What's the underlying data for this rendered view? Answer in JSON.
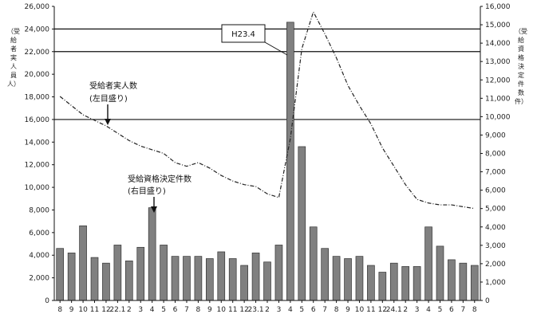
{
  "chart_data": {
    "type": "bar",
    "title": "",
    "ylabel_left": [
      "（受",
      "給",
      "者",
      "実",
      "人",
      "員",
      "人）"
    ],
    "ylabel_right": [
      "（受",
      "給",
      "資",
      "格",
      "決",
      "定",
      "件",
      "数",
      "件）"
    ],
    "categories": [
      "8",
      "9",
      "10",
      "11",
      "12",
      "22.1",
      "2",
      "3",
      "4",
      "5",
      "6",
      "7",
      "8",
      "9",
      "10",
      "11",
      "12",
      "23.1",
      "2",
      "3",
      "4",
      "5",
      "6",
      "7",
      "8",
      "9",
      "10",
      "11",
      "12",
      "24.1",
      "2",
      "3",
      "4",
      "5",
      "6",
      "7",
      "8"
    ],
    "left_axis": {
      "ylim": [
        0,
        26000
      ],
      "ticks": [
        "0",
        "2,000",
        "4,000",
        "6,000",
        "8,000",
        "10,000",
        "12,000",
        "14,000",
        "16,000",
        "18,000",
        "20,000",
        "22,000",
        "24,000",
        "26,000"
      ]
    },
    "right_axis": {
      "ylim": [
        0,
        16000
      ],
      "ticks": [
        "0",
        "1,000",
        "2,000",
        "3,000",
        "4,000",
        "5,000",
        "6,000",
        "7,000",
        "8,000",
        "9,000",
        "10,000",
        "11,000",
        "12,000",
        "13,000",
        "14,000",
        "15,000",
        "16,000"
      ]
    },
    "gridlines_left": [
      16000,
      22000,
      24000
    ],
    "series": [
      {
        "axis": "left",
        "kind": "bar",
        "color": "#808080",
        "values": [
          4600,
          4200,
          6600,
          3800,
          3300,
          4900,
          3500,
          4700,
          8200,
          4900,
          3900,
          3900,
          3900,
          3700,
          4300,
          3700,
          3100,
          4200,
          3400,
          4900,
          24600,
          13600,
          6500,
          4600,
          3900,
          3700,
          3900,
          3100,
          2500,
          3300,
          3000,
          3000,
          6500,
          4800,
          3600,
          3300,
          3100
        ]
      },
      {
        "axis": "right",
        "kind": "line",
        "style": "dashed",
        "color": "#222222",
        "values": [
          11100,
          10600,
          10100,
          9800,
          9500,
          9100,
          8700,
          8400,
          8200,
          8000,
          7500,
          7300,
          7500,
          7200,
          6800,
          6500,
          6300,
          6200,
          5800,
          5600,
          8800,
          13700,
          15700,
          14500,
          13200,
          11700,
          10600,
          9600,
          8300,
          7300,
          6300,
          5500,
          5300,
          5200,
          5200,
          5100,
          5000
        ]
      }
    ],
    "annotations": [
      {
        "text": "受給者実人数",
        "subtext": "(左目盛り)"
      },
      {
        "text": "受給資格決定件数",
        "subtext": "(右目盛り)"
      },
      {
        "text": "H23.4"
      }
    ]
  }
}
